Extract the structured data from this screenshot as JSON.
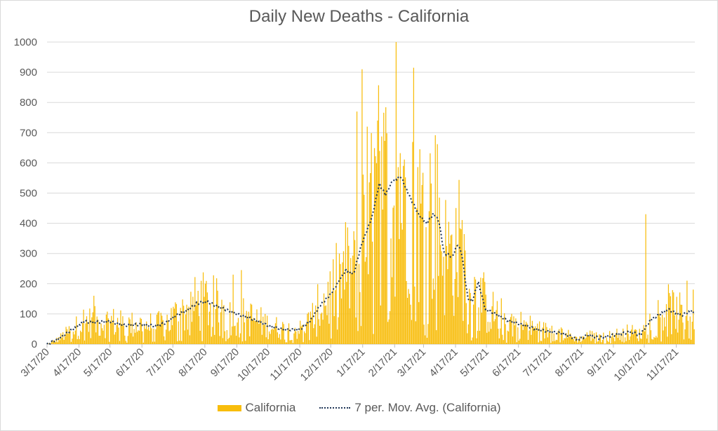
{
  "chart_data": {
    "type": "bar",
    "title": "Daily New Deaths - California",
    "xlabel": "",
    "ylabel": "",
    "ylim": [
      0,
      1000
    ],
    "yticks": [
      0,
      100,
      200,
      300,
      400,
      500,
      600,
      700,
      800,
      900,
      1000
    ],
    "x_tick_labels": [
      "3/17/20",
      "4/17/20",
      "5/17/20",
      "6/17/20",
      "7/17/20",
      "8/17/20",
      "9/17/20",
      "10/17/20",
      "11/17/20",
      "12/17/20",
      "1/17/21",
      "2/17/21",
      "3/17/21",
      "4/17/21",
      "5/17/21",
      "6/17/21",
      "7/17/21",
      "8/17/21",
      "9/17/21",
      "10/17/21",
      "11/17/21"
    ],
    "x_tick_days": [
      0,
      31,
      61,
      92,
      122,
      153,
      184,
      214,
      245,
      275,
      306,
      337,
      365,
      396,
      426,
      457,
      487,
      518,
      549,
      579,
      610
    ],
    "num_days": 628,
    "series": [
      {
        "name": "California",
        "type": "bar",
        "color": "#f8bd0c",
        "avg_profile": [
          [
            0,
            0
          ],
          [
            10,
            15
          ],
          [
            20,
            38
          ],
          [
            28,
            55
          ],
          [
            35,
            75
          ],
          [
            45,
            72
          ],
          [
            60,
            75
          ],
          [
            75,
            62
          ],
          [
            90,
            65
          ],
          [
            105,
            60
          ],
          [
            115,
            70
          ],
          [
            125,
            95
          ],
          [
            135,
            110
          ],
          [
            145,
            135
          ],
          [
            155,
            140
          ],
          [
            165,
            125
          ],
          [
            175,
            112
          ],
          [
            185,
            98
          ],
          [
            195,
            88
          ],
          [
            205,
            75
          ],
          [
            215,
            60
          ],
          [
            230,
            48
          ],
          [
            245,
            48
          ],
          [
            255,
            75
          ],
          [
            265,
            130
          ],
          [
            275,
            165
          ],
          [
            283,
            210
          ],
          [
            290,
            245
          ],
          [
            297,
            230
          ],
          [
            305,
            330
          ],
          [
            315,
            420
          ],
          [
            322,
            530
          ],
          [
            328,
            495
          ],
          [
            335,
            540
          ],
          [
            343,
            555
          ],
          [
            350,
            500
          ],
          [
            360,
            430
          ],
          [
            368,
            400
          ],
          [
            375,
            432
          ],
          [
            380,
            405
          ],
          [
            385,
            300
          ],
          [
            393,
            290
          ],
          [
            398,
            330
          ],
          [
            402,
            300
          ],
          [
            408,
            150
          ],
          [
            412,
            140
          ],
          [
            418,
            205
          ],
          [
            425,
            115
          ],
          [
            435,
            100
          ],
          [
            445,
            80
          ],
          [
            455,
            70
          ],
          [
            465,
            60
          ],
          [
            475,
            48
          ],
          [
            490,
            40
          ],
          [
            500,
            35
          ],
          [
            515,
            15
          ],
          [
            525,
            30
          ],
          [
            535,
            20
          ],
          [
            550,
            30
          ],
          [
            565,
            40
          ],
          [
            575,
            30
          ],
          [
            585,
            80
          ],
          [
            595,
            100
          ],
          [
            602,
            115
          ],
          [
            615,
            95
          ],
          [
            625,
            110
          ],
          [
            628,
            100
          ]
        ],
        "spikes": [
          [
            305,
            910
          ],
          [
            338,
            1000
          ],
          [
            355,
            915
          ],
          [
            370,
            440
          ],
          [
            380,
            485
          ],
          [
            580,
            430
          ],
          [
            300,
            770
          ],
          [
            310,
            720
          ],
          [
            320,
            740
          ],
          [
            345,
            590
          ],
          [
            188,
            245
          ],
          [
            180,
            230
          ],
          [
            45,
            160
          ],
          [
            405,
            310
          ],
          [
            620,
            210
          ]
        ]
      },
      {
        "name": "7 per. Mov. Avg. (California)",
        "type": "line",
        "style": "dotted",
        "color": "#1f3557"
      }
    ]
  },
  "legend": {
    "series_1": "California",
    "series_2": "7 per. Mov. Avg. (California)"
  }
}
